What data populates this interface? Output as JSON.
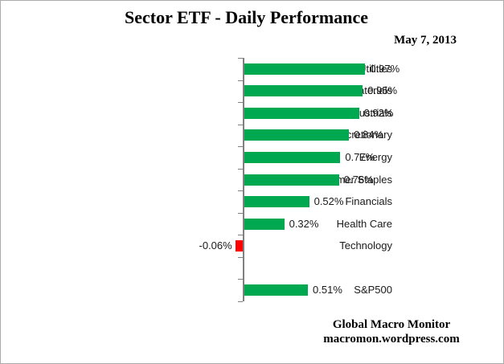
{
  "title": "Sector ETF - Daily Performance",
  "date": "May 7, 2013",
  "attribution": {
    "name": "Global Macro Monitor",
    "url": "macromon.wordpress.com"
  },
  "colors": {
    "positive_bar": "#00A94F",
    "negative_bar": "#FF0000",
    "axis": "#808080",
    "text": "#000000",
    "frame_border": "#ABABAB"
  },
  "chart_data": {
    "type": "bar",
    "orientation": "horizontal",
    "title": "Sector ETF - Daily Performance",
    "subtitle": "May 7, 2013",
    "xlabel": "",
    "ylabel": "",
    "unit": "%",
    "legend": "none",
    "gridlines": false,
    "value_axis_labels_visible": false,
    "xlim": [
      -0.2,
      1.1
    ],
    "categories": [
      "Utilities",
      "Materials",
      "Industrials",
      "Consumer Discretionary",
      "Energy",
      "Consumer Staples",
      "Financials",
      "Health Care",
      "Technology",
      "",
      "S&P500"
    ],
    "values": [
      0.97,
      0.95,
      0.92,
      0.84,
      0.77,
      0.76,
      0.52,
      0.32,
      -0.06,
      null,
      0.51
    ],
    "value_labels": [
      "0.97%",
      "0.95%",
      "0.92%",
      "0.84%",
      "0.77%",
      "0.76%",
      "0.52%",
      "0.32%",
      "-0.06%",
      "",
      "0.51%"
    ]
  }
}
